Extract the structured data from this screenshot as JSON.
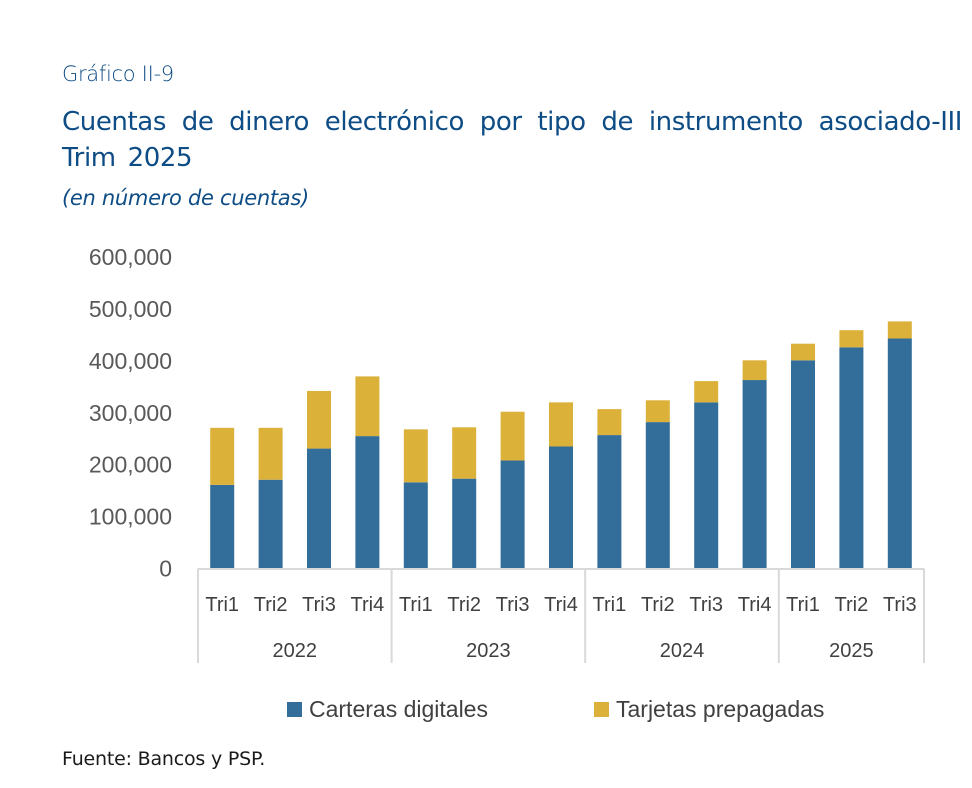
{
  "header": {
    "figure_label": "Gráfico II-9",
    "title": "Cuentas de dinero electrónico por tipo de instrumento asociado-III Trim 2025",
    "subtitle": "(en número de cuentas)"
  },
  "footer": {
    "source": "Fuente: Bancos y PSP."
  },
  "chart_data": {
    "type": "bar",
    "stacked": true,
    "title": "Cuentas de dinero electrónico por tipo de instrumento asociado-III Trim 2025",
    "subtitle": "(en número de cuentas)",
    "xlabel": "",
    "ylabel": "",
    "ylim": [
      0,
      600000
    ],
    "yticks": [
      0,
      100000,
      200000,
      300000,
      400000,
      500000,
      600000
    ],
    "ytick_labels": [
      "0",
      "100,000",
      "200,000",
      "300,000",
      "400,000",
      "500,000",
      "600,000"
    ],
    "grid": false,
    "legend_position": "bottom",
    "groups": [
      {
        "label": "2022",
        "categories": [
          "Tri1",
          "Tri2",
          "Tri3",
          "Tri4"
        ]
      },
      {
        "label": "2023",
        "categories": [
          "Tri1",
          "Tri2",
          "Tri3",
          "Tri4"
        ]
      },
      {
        "label": "2024",
        "categories": [
          "Tri1",
          "Tri2",
          "Tri3",
          "Tri4"
        ]
      },
      {
        "label": "2025",
        "categories": [
          "Tri1",
          "Tri2",
          "Tri3"
        ]
      }
    ],
    "categories": [
      "2022 Tri1",
      "2022 Tri2",
      "2022 Tri3",
      "2022 Tri4",
      "2023 Tri1",
      "2023 Tri2",
      "2023 Tri3",
      "2023 Tri4",
      "2024 Tri1",
      "2024 Tri2",
      "2024 Tri3",
      "2024 Tri4",
      "2025 Tri1",
      "2025 Tri2",
      "2025 Tri3"
    ],
    "series": [
      {
        "name": "Carteras digitales",
        "color": "#336e9b",
        "values": [
          161000,
          171000,
          231000,
          255000,
          166000,
          173000,
          208000,
          235000,
          257000,
          282000,
          320000,
          363000,
          401000,
          426000,
          443000
        ]
      },
      {
        "name": "Tarjetas prepagadas",
        "color": "#dcb13a",
        "values": [
          110000,
          100000,
          111000,
          115000,
          102000,
          99000,
          94000,
          85000,
          50000,
          42000,
          41000,
          38000,
          32000,
          33000,
          33000
        ]
      }
    ]
  }
}
